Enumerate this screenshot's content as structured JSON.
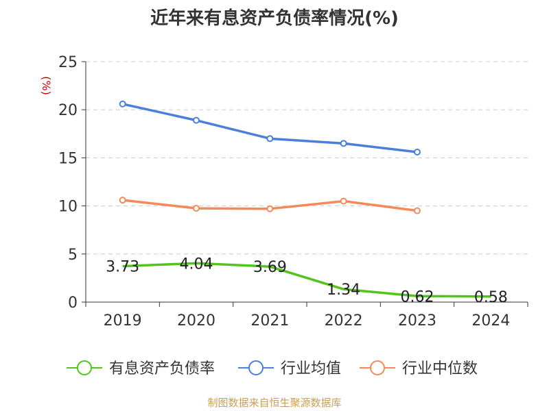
{
  "chart_data": {
    "type": "line",
    "title": "近年来有息资产负债率情况(%)",
    "ylabel": "(%)",
    "ylim": [
      0,
      25
    ],
    "yticks": [
      "0",
      "5",
      "10",
      "15",
      "20",
      "25"
    ],
    "categories": [
      "2019",
      "2020",
      "2021",
      "2022",
      "2023",
      "2024"
    ],
    "grid": true,
    "legend_position": "bottom",
    "series": [
      {
        "name": "有息资产负债率",
        "color": "#52c41a",
        "values": [
          3.73,
          4.04,
          3.69,
          1.34,
          0.62,
          0.58
        ],
        "labels": [
          "3.73",
          "4.04",
          "3.69",
          "1.34",
          "0.62",
          "0.58"
        ]
      },
      {
        "name": "行业均值",
        "color": "#4a7fdb",
        "values": [
          20.6,
          18.9,
          17.0,
          16.5,
          15.6,
          null
        ]
      },
      {
        "name": "行业中位数",
        "color": "#f5895a",
        "values": [
          10.6,
          9.75,
          9.7,
          10.5,
          9.5,
          null
        ]
      }
    ]
  },
  "source": "制图数据来自恒生聚源数据库",
  "colors": {
    "ylabel": "#cc0000",
    "source": "#c8a050",
    "axis": "#333333",
    "grid": "#cccccc"
  }
}
